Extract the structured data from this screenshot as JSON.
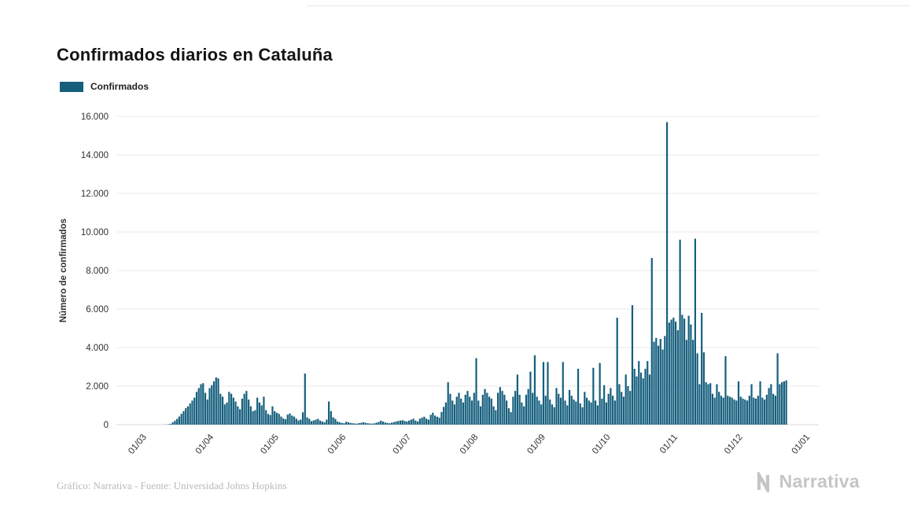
{
  "page": {
    "title": "Confirmados diarios en Cataluña",
    "footer": "Gráfico: Narrativa - Fuente: Universidad Johns Hopkins",
    "brand": "Narrativa"
  },
  "legend": {
    "label": "Confirmados",
    "color": "#155f7d"
  },
  "chart_data": {
    "type": "bar",
    "title": "Confirmados diarios en Cataluña",
    "series_name": "Confirmados",
    "xlabel": "",
    "ylabel": "Número de confirmados",
    "ylim": [
      0,
      16000
    ],
    "y_tick_values": [
      0,
      2000,
      4000,
      6000,
      8000,
      10000,
      12000,
      14000,
      16000
    ],
    "y_tick_labels": [
      "0",
      "2.000",
      "4.000",
      "6.000",
      "8.000",
      "10.000",
      "12.000",
      "14.000",
      "16.000"
    ],
    "x_tick_labels": [
      "01/03",
      "01/04",
      "01/05",
      "01/06",
      "01/07",
      "01/08",
      "01/09",
      "01/10",
      "01/11",
      "01/12",
      "01/01"
    ],
    "x_tick_day_offsets": [
      0,
      31,
      61,
      92,
      122,
      153,
      184,
      214,
      245,
      275,
      306
    ],
    "grid": true,
    "legend_position": "top-left",
    "bar_color": "#155f7d",
    "start_label": "01/03",
    "frequency": "daily",
    "values": [
      0,
      0,
      0,
      0,
      0,
      0,
      0,
      0,
      5,
      10,
      20,
      40,
      120,
      200,
      300,
      420,
      560,
      700,
      850,
      950,
      1100,
      1250,
      1400,
      1700,
      1900,
      2100,
      2150,
      1650,
      1300,
      1900,
      2050,
      2250,
      2450,
      2400,
      1600,
      1450,
      1050,
      1150,
      1700,
      1600,
      1400,
      1200,
      950,
      800,
      1350,
      1600,
      1750,
      1300,
      950,
      700,
      750,
      1400,
      1150,
      1000,
      1450,
      750,
      550,
      500,
      950,
      700,
      620,
      560,
      420,
      320,
      280,
      520,
      580,
      470,
      420,
      310,
      220,
      260,
      640,
      2650,
      380,
      300,
      180,
      220,
      260,
      300,
      210,
      160,
      120,
      260,
      1200,
      700,
      380,
      300,
      160,
      120,
      90,
      70,
      150,
      120,
      90,
      70,
      60,
      50,
      80,
      100,
      120,
      90,
      70,
      60,
      50,
      70,
      100,
      140,
      200,
      160,
      110,
      90,
      70,
      100,
      130,
      160,
      190,
      210,
      230,
      190,
      160,
      210,
      260,
      310,
      210,
      160,
      310,
      360,
      410,
      310,
      260,
      510,
      620,
      470,
      410,
      360,
      660,
      920,
      1150,
      2200,
      1600,
      1250,
      1050,
      1450,
      1650,
      1350,
      1150,
      1550,
      1750,
      1450,
      1250,
      1650,
      3450,
      1250,
      950,
      1550,
      1850,
      1650,
      1450,
      1350,
      950,
      750,
      1650,
      1950,
      1750,
      1550,
      1250,
      850,
      650,
      1450,
      1750,
      2600,
      1550,
      1150,
      950,
      1550,
      1850,
      2750,
      1650,
      3600,
      1450,
      1250,
      1050,
      3250,
      1500,
      3250,
      1300,
      1050,
      900,
      1900,
      1600,
      1400,
      3250,
      1250,
      1000,
      1800,
      1500,
      1300,
      1200,
      2900,
      1100,
      900,
      1700,
      1400,
      1250,
      1150,
      2950,
      1250,
      1000,
      3200,
      1350,
      2050,
      1150,
      1600,
      1900,
      1500,
      1250,
      5550,
      2100,
      1700,
      1450,
      2600,
      2000,
      1750,
      6200,
      2900,
      2500,
      3300,
      2700,
      2400,
      2900,
      3300,
      2600,
      8650,
      4300,
      4500,
      4100,
      4450,
      3900,
      4600,
      15700,
      5300,
      5450,
      5550,
      5350,
      4900,
      9600,
      5700,
      5500,
      4400,
      5650,
      5200,
      4400,
      9650,
      3700,
      2100,
      5800,
      3750,
      2200,
      2100,
      2150,
      1600,
      1400,
      2100,
      1700,
      1500,
      1400,
      3550,
      1500,
      1450,
      1400,
      1300,
      1250,
      2250,
      1450,
      1350,
      1300,
      1250,
      1500,
      2100,
      1400,
      1350,
      1500,
      2250,
      1400,
      1300,
      1550,
      1900,
      2100,
      1600,
      1500,
      3700,
      2100,
      2200,
      2250,
      2300
    ]
  }
}
